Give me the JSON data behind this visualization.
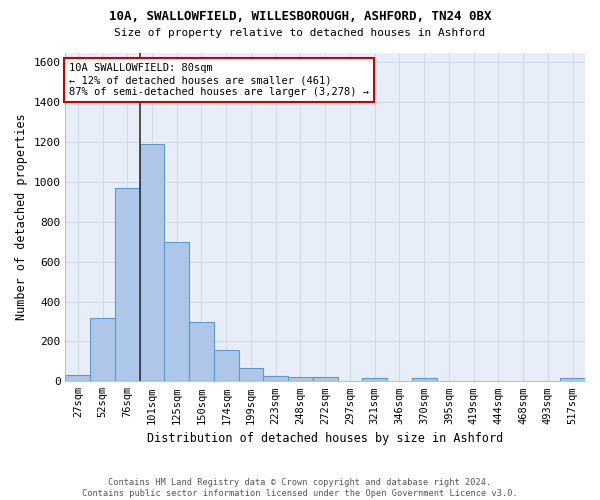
{
  "title_line1": "10A, SWALLOWFIELD, WILLESBOROUGH, ASHFORD, TN24 0BX",
  "title_line2": "Size of property relative to detached houses in Ashford",
  "xlabel": "Distribution of detached houses by size in Ashford",
  "ylabel": "Number of detached properties",
  "bar_labels": [
    "27sqm",
    "52sqm",
    "76sqm",
    "101sqm",
    "125sqm",
    "150sqm",
    "174sqm",
    "199sqm",
    "223sqm",
    "248sqm",
    "272sqm",
    "297sqm",
    "321sqm",
    "346sqm",
    "370sqm",
    "395sqm",
    "419sqm",
    "444sqm",
    "468sqm",
    "493sqm",
    "517sqm"
  ],
  "bar_values": [
    30,
    320,
    970,
    1190,
    700,
    300,
    155,
    65,
    25,
    20,
    20,
    0,
    15,
    0,
    15,
    0,
    0,
    0,
    0,
    0,
    15
  ],
  "bar_color": "#aec6e8",
  "bar_edge_color": "#5b9bd5",
  "vline_bar_index": 2,
  "annotation_text": "10A SWALLOWFIELD: 80sqm\n← 12% of detached houses are smaller (461)\n87% of semi-detached houses are larger (3,278) →",
  "annotation_box_color": "#ffffff",
  "annotation_box_edge_color": "#cc0000",
  "ylim": [
    0,
    1650
  ],
  "yticks": [
    0,
    200,
    400,
    600,
    800,
    1000,
    1200,
    1400,
    1600
  ],
  "grid_color": "#d0d8e8",
  "background_color": "#e8eef8",
  "footer_line1": "Contains HM Land Registry data © Crown copyright and database right 2024.",
  "footer_line2": "Contains public sector information licensed under the Open Government Licence v3.0."
}
